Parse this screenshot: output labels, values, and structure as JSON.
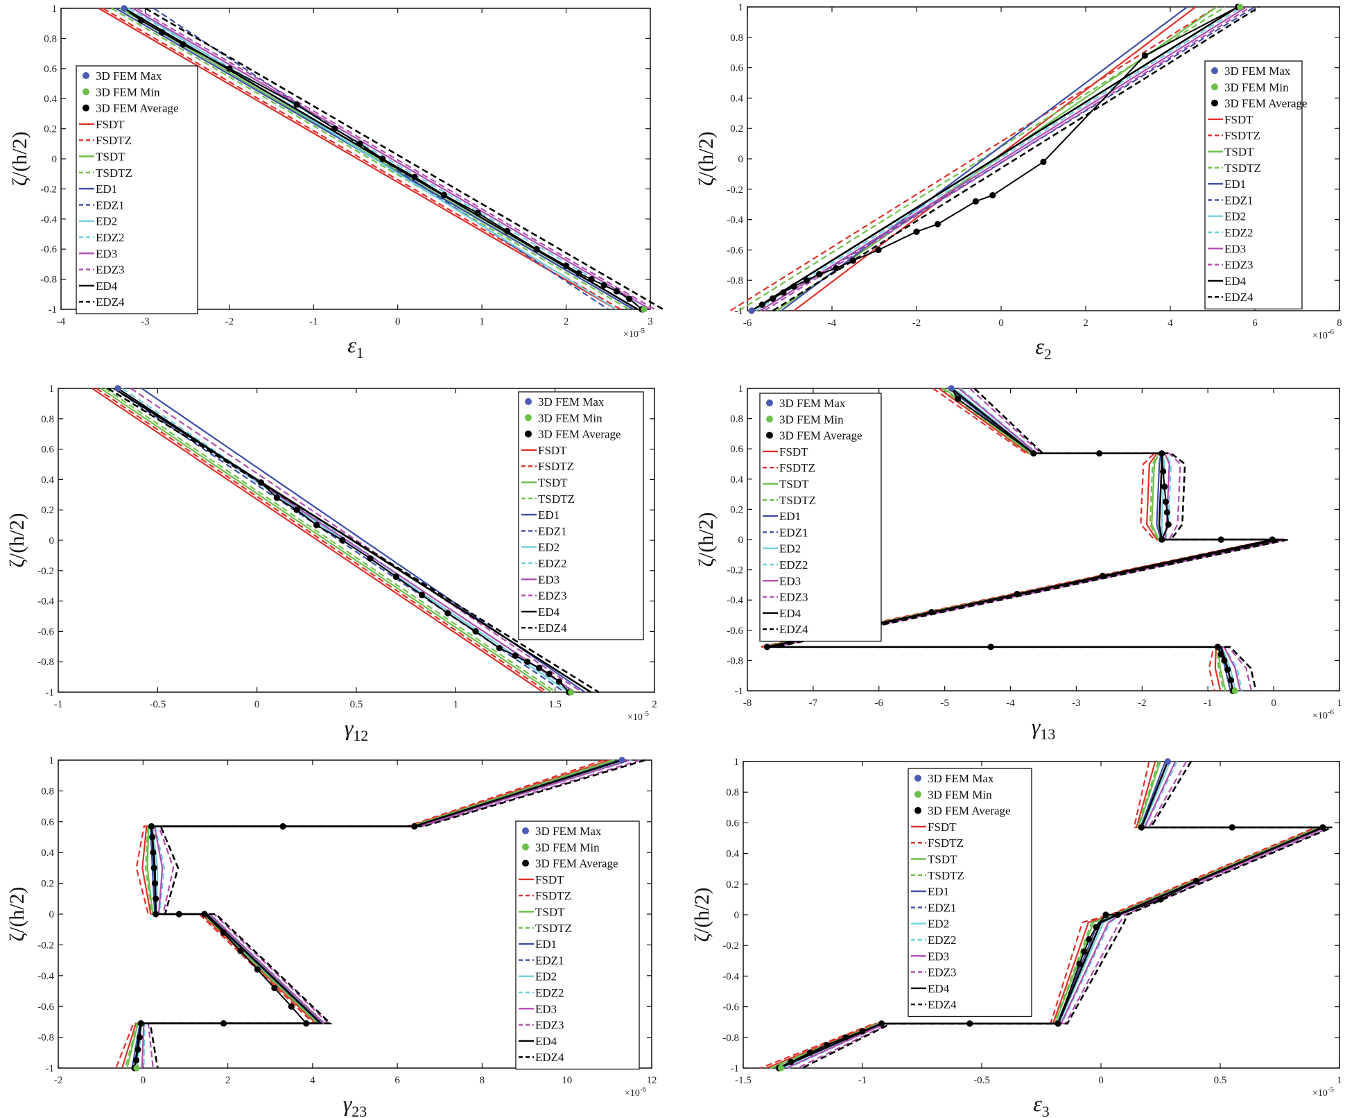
{
  "chart_data": [
    {
      "type": "line",
      "xlabel": "ε1",
      "xlabel_base": "ε",
      "xlabel_sub": "1",
      "ylabel": "ζ/(h/2)",
      "ylim": [
        -1,
        1
      ],
      "yticks": [
        -1,
        -0.8,
        -0.6,
        -0.4,
        -0.2,
        0,
        0.2,
        0.4,
        0.6,
        0.8,
        1
      ],
      "xlim": [
        -4,
        3
      ],
      "xticks": [
        -4,
        -3,
        -2,
        -1,
        0,
        1,
        2,
        3
      ],
      "x_exponent": "×10",
      "x_exponent_power": "-5",
      "legend": "top-left",
      "legend_entries": [
        "3D FEM Max",
        "3D FEM Min",
        "3D FEM Average",
        "FSDT",
        "FSDTZ",
        "TSDT",
        "TSDTZ",
        "ED1",
        "EDZ1",
        "ED2",
        "EDZ2",
        "ED3",
        "EDZ3",
        "ED4",
        "EDZ4"
      ],
      "series_ends": {
        "ED4": [
          [
            -3.25,
            1
          ],
          [
            2.85,
            -1
          ]
        ],
        "EDZ1": [
          [
            -2.9,
            1
          ],
          [
            2.5,
            -1
          ]
        ],
        "ED2": [
          [
            -3.15,
            1
          ],
          [
            2.6,
            -1
          ]
        ],
        "TSDT": [
          [
            -3.3,
            1
          ],
          [
            2.8,
            -1
          ]
        ]
      },
      "fem_average": [
        [
          -3.25,
          1
        ],
        [
          -3.05,
          0.92
        ],
        [
          -2.8,
          0.84
        ],
        [
          -2.55,
          0.76
        ],
        [
          -2.0,
          0.6
        ],
        [
          -1.2,
          0.36
        ],
        [
          -0.75,
          0.2
        ],
        [
          -0.45,
          0.1
        ],
        [
          -0.18,
          0
        ],
        [
          0.2,
          -0.12
        ],
        [
          0.55,
          -0.24
        ],
        [
          0.95,
          -0.36
        ],
        [
          1.3,
          -0.48
        ],
        [
          1.65,
          -0.6
        ],
        [
          2.0,
          -0.71
        ],
        [
          2.15,
          -0.76
        ],
        [
          2.3,
          -0.8
        ],
        [
          2.45,
          -0.84
        ],
        [
          2.6,
          -0.88
        ],
        [
          2.75,
          -0.93
        ],
        [
          2.9,
          -1
        ]
      ]
    },
    {
      "type": "line",
      "xlabel": "ε2",
      "xlabel_base": "ε",
      "xlabel_sub": "2",
      "ylabel": "ζ/(h/2)",
      "ylim": [
        -1,
        1
      ],
      "yticks": [
        -1,
        -0.8,
        -0.6,
        -0.4,
        -0.2,
        0,
        0.2,
        0.4,
        0.6,
        0.8,
        1
      ],
      "xlim": [
        -6,
        8
      ],
      "xticks": [
        -6,
        -4,
        -2,
        0,
        2,
        4,
        6,
        8
      ],
      "x_exponent": "×10",
      "x_exponent_power": "-6",
      "legend": "top-right",
      "legend_entries": [
        "3D FEM Max",
        "3D FEM Min",
        "3D FEM Average",
        "FSDT",
        "FSDTZ",
        "TSDT",
        "TSDTZ",
        "ED1",
        "EDZ1",
        "ED2",
        "EDZ2",
        "ED3",
        "EDZ3",
        "ED4",
        "EDZ4"
      ],
      "series_ends": {
        "FSDT": [
          [
            -4.9,
            -1
          ],
          [
            4.6,
            1
          ]
        ],
        "ED1": [
          [
            -5.2,
            -1
          ],
          [
            4.4,
            1
          ]
        ],
        "TSDT": [
          [
            -5.3,
            -1
          ],
          [
            5.1,
            1
          ]
        ],
        "ED4": [
          [
            -5.9,
            -1
          ],
          [
            5.6,
            1
          ]
        ],
        "EDZ1": [
          [
            -5.7,
            -1
          ],
          [
            6.0,
            1
          ]
        ]
      },
      "fem_average": [
        [
          -5.9,
          -1
        ],
        [
          -5.65,
          -0.96
        ],
        [
          -5.4,
          -0.92
        ],
        [
          -5.15,
          -0.88
        ],
        [
          -4.9,
          -0.84
        ],
        [
          -4.6,
          -0.8
        ],
        [
          -4.3,
          -0.76
        ],
        [
          -3.9,
          -0.72
        ],
        [
          -3.5,
          -0.67
        ],
        [
          -2.9,
          -0.6
        ],
        [
          -2.0,
          -0.48
        ],
        [
          -1.5,
          -0.43
        ],
        [
          -0.6,
          -0.28
        ],
        [
          -0.2,
          -0.24
        ],
        [
          1.0,
          -0.02
        ],
        [
          3.4,
          0.68
        ],
        [
          5.6,
          1
        ]
      ]
    },
    {
      "type": "line",
      "xlabel": "γ12",
      "xlabel_base": "γ",
      "xlabel_sub": "12",
      "ylabel": "ζ/(h/2)",
      "ylim": [
        -1,
        1
      ],
      "yticks": [
        -1,
        -0.8,
        -0.6,
        -0.4,
        -0.2,
        0,
        0.2,
        0.4,
        0.6,
        0.8,
        1
      ],
      "xlim": [
        -1,
        2
      ],
      "xticks": [
        -1,
        -0.5,
        0,
        0.5,
        1,
        1.5,
        2
      ],
      "x_exponent": "×10",
      "x_exponent_power": "-5",
      "legend": "top-right",
      "legend_entries": [
        "3D FEM Max",
        "3D FEM Min",
        "3D FEM Average",
        "FSDT",
        "FSDTZ",
        "TSDT",
        "TSDTZ",
        "ED1",
        "EDZ1",
        "ED2",
        "EDZ2",
        "ED3",
        "EDZ3",
        "ED4",
        "EDZ4"
      ],
      "series_ends": {
        "ED1": [
          [
            -0.58,
            1
          ],
          [
            1.65,
            -1
          ]
        ],
        "EDZ4": [
          [
            -0.75,
            1
          ],
          [
            1.72,
            -1
          ]
        ],
        "ED3": [
          [
            -0.7,
            1
          ],
          [
            1.6,
            -1
          ]
        ],
        "ED4": [
          [
            -0.72,
            1
          ],
          [
            1.68,
            -1
          ]
        ]
      },
      "fem_average": [
        [
          -0.7,
          1
        ],
        [
          0.02,
          0.38
        ],
        [
          0.1,
          0.28
        ],
        [
          0.2,
          0.2
        ],
        [
          0.3,
          0.1
        ],
        [
          0.43,
          0
        ],
        [
          0.57,
          -0.12
        ],
        [
          0.7,
          -0.24
        ],
        [
          0.83,
          -0.36
        ],
        [
          0.96,
          -0.48
        ],
        [
          1.1,
          -0.6
        ],
        [
          1.22,
          -0.71
        ],
        [
          1.3,
          -0.76
        ],
        [
          1.36,
          -0.8
        ],
        [
          1.42,
          -0.84
        ],
        [
          1.47,
          -0.88
        ],
        [
          1.52,
          -0.93
        ],
        [
          1.57,
          -1
        ]
      ]
    },
    {
      "type": "line",
      "xlabel": "γ13",
      "xlabel_base": "γ",
      "xlabel_sub": "13",
      "ylabel": "ζ/(h/2)",
      "ylim": [
        -1,
        1
      ],
      "yticks": [
        -1,
        -0.8,
        -0.6,
        -0.4,
        -0.2,
        0,
        0.2,
        0.4,
        0.6,
        0.8,
        1
      ],
      "xlim": [
        -8,
        1
      ],
      "xticks": [
        -8,
        -7,
        -6,
        -5,
        -4,
        -3,
        -2,
        -1,
        0,
        1
      ],
      "x_exponent": "×10",
      "x_exponent_power": "-6",
      "legend": "top-left",
      "legend_entries": [
        "3D FEM Max",
        "3D FEM Min",
        "3D FEM Average",
        "FSDT",
        "FSDTZ",
        "TSDT",
        "TSDTZ",
        "ED1",
        "EDZ1",
        "ED2",
        "EDZ2",
        "ED3",
        "EDZ3",
        "ED4",
        "EDZ4"
      ],
      "ed4_profile": [
        [
          -4.9,
          1
        ],
        [
          -3.65,
          0.57
        ],
        [
          -1.7,
          0.57
        ],
        [
          -1.7,
          0.5
        ],
        [
          -1.72,
          0.3
        ],
        [
          -1.74,
          0.1
        ],
        [
          -1.7,
          0
        ],
        [
          0.08,
          0
        ],
        [
          -7.7,
          -0.71
        ],
        [
          -0.8,
          -0.71
        ],
        [
          -0.7,
          -0.85
        ],
        [
          -0.62,
          -1
        ]
      ],
      "fem_average": [
        [
          -4.9,
          1
        ],
        [
          -4.8,
          0.93
        ],
        [
          -3.65,
          0.57
        ],
        [
          -2.65,
          0.57
        ],
        [
          -1.7,
          0.57
        ],
        [
          -1.68,
          0.45
        ],
        [
          -1.66,
          0.35
        ],
        [
          -1.64,
          0.25
        ],
        [
          -1.62,
          0.18
        ],
        [
          -1.6,
          0.1
        ],
        [
          -1.7,
          0
        ],
        [
          -0.8,
          0
        ],
        [
          -0.02,
          0
        ],
        [
          -2.6,
          -0.24
        ],
        [
          -3.9,
          -0.36
        ],
        [
          -5.2,
          -0.48
        ],
        [
          -7.7,
          -0.71
        ],
        [
          -4.3,
          -0.71
        ],
        [
          -0.85,
          -0.71
        ],
        [
          -0.8,
          -0.76
        ],
        [
          -0.75,
          -0.8
        ],
        [
          -0.7,
          -0.86
        ],
        [
          -0.65,
          -0.93
        ],
        [
          -0.62,
          -1
        ]
      ]
    },
    {
      "type": "line",
      "xlabel": "γ23",
      "xlabel_base": "γ",
      "xlabel_sub": "23",
      "ylabel": "ζ/(h/2)",
      "ylim": [
        -1,
        1
      ],
      "yticks": [
        -1,
        -0.8,
        -0.6,
        -0.4,
        -0.2,
        0,
        0.2,
        0.4,
        0.6,
        0.8,
        1
      ],
      "xlim": [
        -2,
        12
      ],
      "xticks": [
        -2,
        0,
        2,
        4,
        6,
        8,
        10,
        12
      ],
      "x_exponent": "×10",
      "x_exponent_power": "-6",
      "legend": "right",
      "legend_entries": [
        "3D FEM Max",
        "3D FEM Min",
        "3D FEM Average",
        "FSDT",
        "FSDTZ",
        "TSDT",
        "TSDTZ",
        "ED1",
        "EDZ1",
        "ED2",
        "EDZ2",
        "ED3",
        "EDZ3",
        "ED4",
        "EDZ4"
      ],
      "ed4_profile": [
        [
          11.3,
          1
        ],
        [
          6.4,
          0.57
        ],
        [
          0.2,
          0.57
        ],
        [
          0.28,
          0.3
        ],
        [
          0.3,
          0
        ],
        [
          1.5,
          0
        ],
        [
          4.2,
          -0.71
        ],
        [
          -0.05,
          -0.71
        ],
        [
          -0.2,
          -1
        ]
      ],
      "fem_average": [
        [
          11.3,
          1
        ],
        [
          6.4,
          0.57
        ],
        [
          3.3,
          0.57
        ],
        [
          0.2,
          0.57
        ],
        [
          0.22,
          0.5
        ],
        [
          0.24,
          0.4
        ],
        [
          0.26,
          0.3
        ],
        [
          0.28,
          0.2
        ],
        [
          0.3,
          0.1
        ],
        [
          0.3,
          0
        ],
        [
          0.85,
          0
        ],
        [
          1.45,
          0
        ],
        [
          1.9,
          -0.12
        ],
        [
          2.3,
          -0.24
        ],
        [
          2.7,
          -0.36
        ],
        [
          3.1,
          -0.48
        ],
        [
          3.5,
          -0.6
        ],
        [
          3.85,
          -0.71
        ],
        [
          1.9,
          -0.71
        ],
        [
          -0.05,
          -0.71
        ],
        [
          -0.08,
          -0.8
        ],
        [
          -0.12,
          -0.88
        ],
        [
          -0.16,
          -0.95
        ],
        [
          -0.2,
          -1
        ]
      ]
    },
    {
      "type": "line",
      "xlabel": "ε3",
      "xlabel_base": "ε",
      "xlabel_sub": "3",
      "ylabel": "ζ/(h/2)",
      "ylim": [
        -1,
        1
      ],
      "yticks": [
        -1,
        -0.8,
        -0.6,
        -0.4,
        -0.2,
        0,
        0.2,
        0.4,
        0.6,
        0.8,
        1
      ],
      "xlim": [
        -1.5,
        1
      ],
      "xticks": [
        -1.5,
        -1,
        -0.5,
        0,
        0.5,
        1
      ],
      "x_exponent": "×10",
      "x_exponent_power": "-5",
      "legend": "top-left",
      "legend_entries": [
        "3D FEM Max",
        "3D FEM Min",
        "3D FEM Average",
        "FSDT",
        "FSDTZ",
        "TSDT",
        "TSDTZ",
        "ED1",
        "EDZ1",
        "ED2",
        "EDZ2",
        "ED3",
        "EDZ3",
        "ED4",
        "EDZ4"
      ],
      "ed4_profile": [
        [
          0.28,
          1
        ],
        [
          0.17,
          0.57
        ],
        [
          0.93,
          0.57
        ],
        [
          0.07,
          0
        ],
        [
          0.0,
          -0.05
        ],
        [
          -0.18,
          -0.71
        ],
        [
          -0.92,
          -0.71
        ],
        [
          -1.35,
          -1
        ]
      ],
      "fem_average": [
        [
          0.28,
          1
        ],
        [
          0.17,
          0.57
        ],
        [
          0.55,
          0.57
        ],
        [
          0.93,
          0.57
        ],
        [
          0.4,
          0.22
        ],
        [
          0.25,
          0.1
        ],
        [
          0.07,
          0
        ],
        [
          0.02,
          0
        ],
        [
          -0.02,
          -0.08
        ],
        [
          -0.05,
          -0.16
        ],
        [
          -0.07,
          -0.24
        ],
        [
          -0.09,
          -0.32
        ],
        [
          -0.18,
          -0.71
        ],
        [
          -0.55,
          -0.71
        ],
        [
          -0.92,
          -0.71
        ],
        [
          -1.0,
          -0.76
        ],
        [
          -1.07,
          -0.8
        ],
        [
          -1.15,
          -0.85
        ],
        [
          -1.22,
          -0.9
        ],
        [
          -1.3,
          -0.96
        ],
        [
          -1.35,
          -1
        ]
      ]
    }
  ],
  "colors": {
    "fem_max": "#4a5bb5",
    "fem_min": "#6cc04a",
    "fem_avg": "#000000",
    "FSDT": "#e0302a",
    "FSDTZ": "#e0302a",
    "TSDT": "#6cc04a",
    "TSDTZ": "#6cc04a",
    "ED1": "#3c4ea8",
    "EDZ1": "#3c4ea8",
    "ED2": "#6fd0e0",
    "EDZ2": "#6fd0e0",
    "ED3": "#b04cb0",
    "EDZ3": "#b04cb0",
    "ED4": "#000000",
    "EDZ4": "#000000"
  }
}
